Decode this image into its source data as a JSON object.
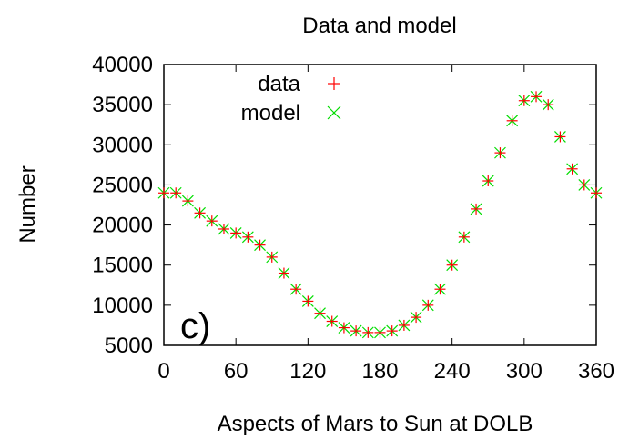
{
  "chart_data": {
    "type": "scatter",
    "title": "Data and model",
    "xlabel": "Aspects of Mars to Sun at DOLB",
    "ylabel": "Number",
    "panel_label": "c)",
    "xlim": [
      0,
      360
    ],
    "ylim": [
      5000,
      40000
    ],
    "xticks": [
      0,
      60,
      120,
      180,
      240,
      300,
      360
    ],
    "yticks": [
      5000,
      10000,
      15000,
      20000,
      25000,
      30000,
      35000,
      40000
    ],
    "grid": false,
    "legend_position": "top-left",
    "series": [
      {
        "name": "data",
        "marker": "plus",
        "color": "#ff0000",
        "x": [
          0,
          10,
          20,
          30,
          40,
          50,
          60,
          70,
          80,
          90,
          100,
          110,
          120,
          130,
          140,
          150,
          160,
          170,
          180,
          190,
          200,
          210,
          220,
          230,
          240,
          250,
          260,
          270,
          280,
          290,
          300,
          310,
          320,
          330,
          340,
          350,
          360
        ],
        "y": [
          24000,
          24000,
          23000,
          21500,
          20500,
          19500,
          19000,
          18500,
          17500,
          16000,
          14000,
          12000,
          10500,
          9000,
          8000,
          7200,
          6800,
          6600,
          6600,
          6800,
          7500,
          8500,
          10000,
          12000,
          15000,
          18500,
          22000,
          25500,
          29000,
          33000,
          35500,
          36000,
          35000,
          31000,
          27000,
          25000,
          24000
        ]
      },
      {
        "name": "model",
        "marker": "cross",
        "color": "#00dd00",
        "x": [
          0,
          10,
          20,
          30,
          40,
          50,
          60,
          70,
          80,
          90,
          100,
          110,
          120,
          130,
          140,
          150,
          160,
          170,
          180,
          190,
          200,
          210,
          220,
          230,
          240,
          250,
          260,
          270,
          280,
          290,
          300,
          310,
          320,
          330,
          340,
          350,
          360
        ],
        "y": [
          24000,
          24000,
          23000,
          21500,
          20500,
          19500,
          19000,
          18500,
          17500,
          16000,
          14000,
          12000,
          10500,
          9000,
          8000,
          7200,
          6800,
          6600,
          6600,
          6800,
          7500,
          8500,
          10000,
          12000,
          15000,
          18500,
          22000,
          25500,
          29000,
          33000,
          35500,
          36000,
          35000,
          31000,
          27000,
          25000,
          24000
        ]
      }
    ]
  }
}
